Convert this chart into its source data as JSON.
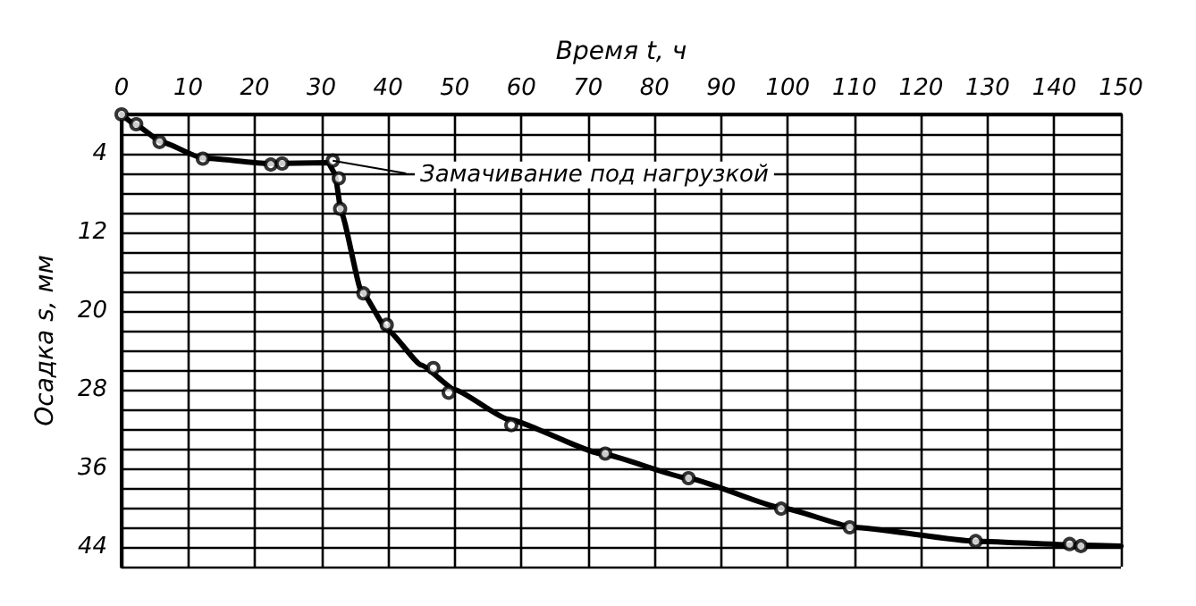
{
  "chart_data": {
    "type": "scatter",
    "xlabel": "Время t, ч",
    "ylabel": "Осадка s, мм",
    "xlim": [
      0,
      150
    ],
    "xticks": [
      0,
      10,
      20,
      30,
      40,
      50,
      60,
      70,
      80,
      90,
      100,
      110,
      120,
      130,
      140,
      150
    ],
    "ylim": [
      46,
      0
    ],
    "yticks": [
      {
        "value": 0,
        "label": null
      },
      {
        "value": 2,
        "label": null
      },
      4,
      {
        "value": 6,
        "label": null
      },
      {
        "value": 8,
        "label": null
      },
      {
        "value": 10,
        "label": null
      },
      12,
      {
        "value": 14,
        "label": null
      },
      {
        "value": 16,
        "label": null
      },
      {
        "value": 18,
        "label": null
      },
      20,
      {
        "value": 22,
        "label": null
      },
      {
        "value": 24,
        "label": null
      },
      {
        "value": 26,
        "label": null
      },
      28,
      {
        "value": 30,
        "label": null
      },
      {
        "value": 32,
        "label": null
      },
      {
        "value": 34,
        "label": null
      },
      36,
      {
        "value": 38,
        "label": null
      },
      {
        "value": 40,
        "label": null
      },
      {
        "value": 42,
        "label": null
      },
      44,
      {
        "value": 46,
        "label": null
      }
    ],
    "grid": true,
    "series": [
      {
        "marker": "circle",
        "color": "#000000",
        "x": [
          0,
          2.2,
          5.7,
          12.2,
          22.4,
          24.1,
          31.7,
          32.6,
          32.8,
          36.3,
          39.8,
          46.8,
          49.1,
          58.5,
          72.6,
          85.1,
          99,
          109.3,
          128.2,
          142.3,
          144
        ],
        "values": [
          0,
          1,
          2.8,
          4.5,
          5.1,
          5,
          4.7,
          6.5,
          9.6,
          18.2,
          21.4,
          25.8,
          28.3,
          31.6,
          34.5,
          37,
          40.1,
          42,
          43.4,
          43.7,
          43.9
        ]
      },
      {
        "type": "line",
        "marker": "none",
        "line_style": "solid",
        "color": "#000000",
        "x": [
          0,
          2,
          6,
          12,
          22,
          31,
          32,
          33,
          36,
          40,
          45,
          50,
          58,
          72,
          85,
          99,
          110,
          128,
          143,
          150
        ],
        "values": [
          0,
          1,
          2.8,
          4.4,
          5,
          4.9,
          6,
          10,
          18,
          22,
          25.5,
          28,
          31,
          34.5,
          37,
          40,
          42,
          43.4,
          43.8,
          43.9
        ]
      }
    ],
    "annotations": [
      {
        "text": "Замачивание под нагрузкой",
        "x": 31.7,
        "y": 4.7
      }
    ]
  }
}
